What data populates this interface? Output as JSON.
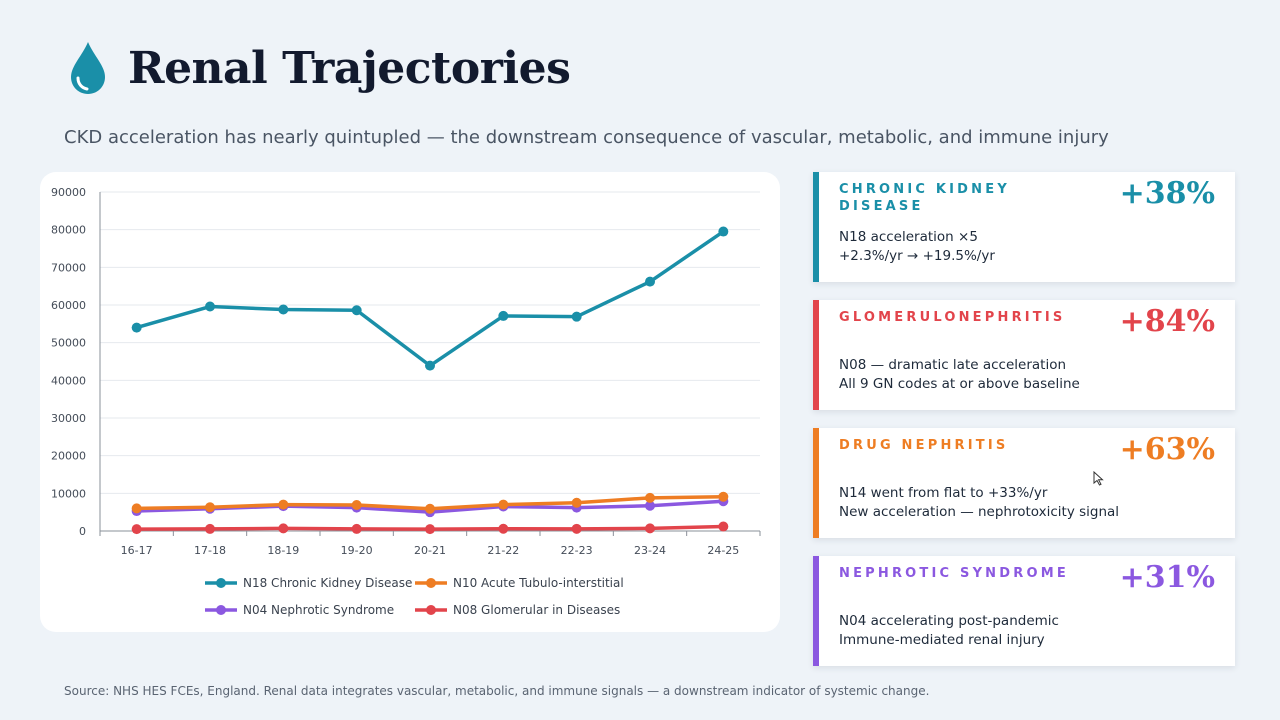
{
  "header": {
    "title": "Renal Trajectories",
    "subtitle": "CKD acceleration has nearly quintupled — the downstream consequence of vascular, metabolic, and immune injury",
    "icon": "water-drop-icon"
  },
  "chart_data": {
    "type": "line",
    "title": "",
    "xlabel": "",
    "ylabel": "",
    "categories": [
      "16-17",
      "17-18",
      "18-19",
      "19-20",
      "20-21",
      "21-22",
      "22-23",
      "23-24",
      "24-25"
    ],
    "ylim": [
      0,
      90000
    ],
    "yticks": [
      0,
      10000,
      20000,
      30000,
      40000,
      50000,
      60000,
      70000,
      80000,
      90000
    ],
    "grid": true,
    "legend_position": "bottom",
    "series": [
      {
        "name": "N18 Chronic Kidney Disease",
        "color": "#1a8fa8",
        "values": [
          54000,
          59600,
          58800,
          58600,
          43900,
          57100,
          56900,
          66200,
          79500
        ]
      },
      {
        "name": "N10 Acute Tubulo-interstitial",
        "color": "#ee7d23",
        "values": [
          6000,
          6300,
          7000,
          6900,
          5900,
          7000,
          7500,
          8800,
          9100
        ]
      },
      {
        "name": "N04 Nephrotic Syndrome",
        "color": "#8b58e0",
        "values": [
          5300,
          5900,
          6600,
          6200,
          5000,
          6500,
          6200,
          6700,
          7900
        ]
      },
      {
        "name": "N08 Glomerular in Diseases",
        "color": "#e2444b",
        "values": [
          500,
          550,
          700,
          550,
          500,
          600,
          580,
          700,
          1200
        ]
      }
    ]
  },
  "cards": [
    {
      "label": "Chronic Kidney Disease",
      "value": "+38%",
      "color": "#1a8fa8",
      "lines": [
        "N18 acceleration ×5",
        "+2.3%/yr → +19.5%/yr"
      ]
    },
    {
      "label": "Glomerulonephritis",
      "value": "+84%",
      "color": "#e2444b",
      "lines": [
        "N08 — dramatic late acceleration",
        "All 9 GN codes at or above baseline"
      ]
    },
    {
      "label": "Drug Nephritis",
      "value": "+63%",
      "color": "#ee7d23",
      "lines": [
        "N14 went from flat to +33%/yr",
        "New acceleration — nephrotoxicity signal"
      ]
    },
    {
      "label": "Nephrotic Syndrome",
      "value": "+31%",
      "color": "#8b58e0",
      "lines": [
        "N04 accelerating post-pandemic",
        "Immune-mediated renal injury"
      ]
    }
  ],
  "footer": {
    "source": "Source: NHS HES FCEs, England. Renal data integrates vascular, metabolic, and immune signals — a downstream indicator of systemic change."
  }
}
